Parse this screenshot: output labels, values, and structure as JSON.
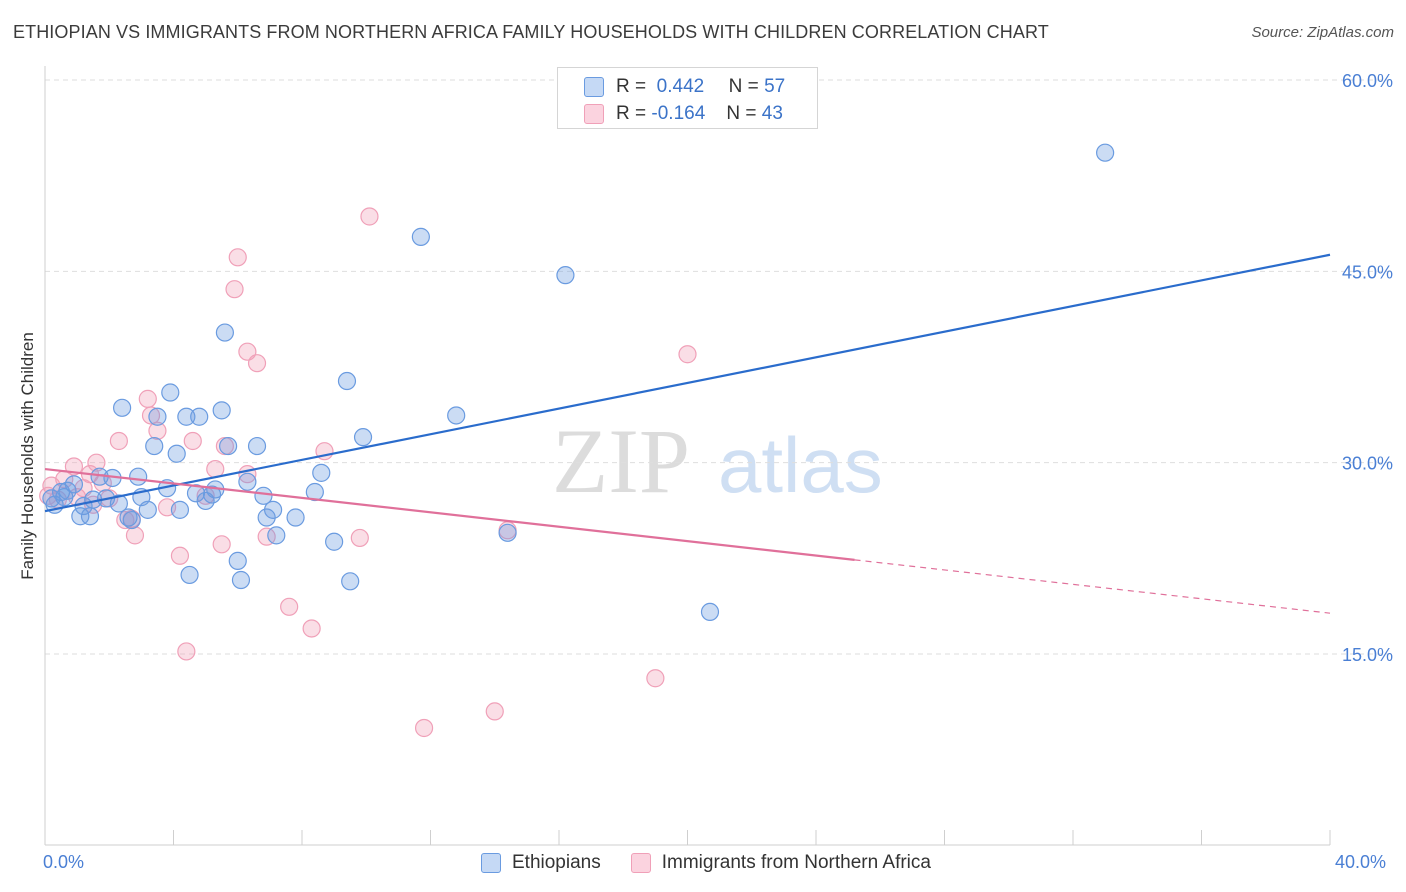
{
  "header": {
    "title": "ETHIOPIAN VS IMMIGRANTS FROM NORTHERN AFRICA FAMILY HOUSEHOLDS WITH CHILDREN CORRELATION CHART",
    "source": "Source: ZipAtlas.com"
  },
  "watermark": {
    "zip": "ZIP",
    "atlas": "atlas"
  },
  "legend": {
    "rows": [
      {
        "r_label": "R =",
        "r_value": "0.442",
        "n_label": "N =",
        "n_value": "57"
      },
      {
        "r_label": "R =",
        "r_value": "-0.164",
        "n_label": "N =",
        "n_value": "43"
      }
    ]
  },
  "chart_data": {
    "type": "scatter",
    "title": "ETHIOPIAN VS IMMIGRANTS FROM NORTHERN AFRICA FAMILY HOUSEHOLDS WITH CHILDREN CORRELATION CHART",
    "xlabel": "",
    "ylabel": "Family Households with Children",
    "xlim": [
      0,
      40
    ],
    "ylim": [
      0,
      61
    ],
    "x_tick_labels": [
      "0.0%",
      "40.0%"
    ],
    "y_ticks": [
      15,
      30,
      45,
      60
    ],
    "y_tick_labels": [
      "15.0%",
      "30.0%",
      "45.0%",
      "60.0%"
    ],
    "grid": true,
    "legend_position": "top-center",
    "colors": {
      "blue": "#6a9be0",
      "blue_line": "#2a6ccc",
      "pink": "#f0a0b8",
      "pink_line": "#e0709a"
    },
    "series": [
      {
        "name": "Ethiopians",
        "R": 0.442,
        "N": 57,
        "trend": {
          "x": [
            0,
            40
          ],
          "y": [
            26.2,
            46.3
          ],
          "dashed_from": null
        },
        "points": [
          [
            0.2,
            27.2
          ],
          [
            0.3,
            26.7
          ],
          [
            0.5,
            27.7
          ],
          [
            0.6,
            27.3
          ],
          [
            0.7,
            27.8
          ],
          [
            0.9,
            28.3
          ],
          [
            1.1,
            25.8
          ],
          [
            1.2,
            26.6
          ],
          [
            1.4,
            25.8
          ],
          [
            1.5,
            27.1
          ],
          [
            1.7,
            28.9
          ],
          [
            1.9,
            27.2
          ],
          [
            2.1,
            28.8
          ],
          [
            2.3,
            26.8
          ],
          [
            2.4,
            34.3
          ],
          [
            2.6,
            25.7
          ],
          [
            2.7,
            25.5
          ],
          [
            2.9,
            28.9
          ],
          [
            3.0,
            27.3
          ],
          [
            3.2,
            26.3
          ],
          [
            3.4,
            31.3
          ],
          [
            3.5,
            33.6
          ],
          [
            3.8,
            28.0
          ],
          [
            3.9,
            35.5
          ],
          [
            4.1,
            30.7
          ],
          [
            4.2,
            26.3
          ],
          [
            4.4,
            33.6
          ],
          [
            4.5,
            21.2
          ],
          [
            4.7,
            27.6
          ],
          [
            4.8,
            33.6
          ],
          [
            5.0,
            27.0
          ],
          [
            5.2,
            27.5
          ],
          [
            5.3,
            27.9
          ],
          [
            5.5,
            34.1
          ],
          [
            5.6,
            40.2
          ],
          [
            5.7,
            31.3
          ],
          [
            6.0,
            22.3
          ],
          [
            6.1,
            20.8
          ],
          [
            6.3,
            28.5
          ],
          [
            6.6,
            31.3
          ],
          [
            6.8,
            27.4
          ],
          [
            6.9,
            25.7
          ],
          [
            7.1,
            26.3
          ],
          [
            7.2,
            24.3
          ],
          [
            7.8,
            25.7
          ],
          [
            8.4,
            27.7
          ],
          [
            8.6,
            29.2
          ],
          [
            9.0,
            23.8
          ],
          [
            9.4,
            36.4
          ],
          [
            9.5,
            20.7
          ],
          [
            9.9,
            32.0
          ],
          [
            11.7,
            47.7
          ],
          [
            12.8,
            33.7
          ],
          [
            14.4,
            24.5
          ],
          [
            16.2,
            44.7
          ],
          [
            20.7,
            18.3
          ],
          [
            33.0,
            54.3
          ]
        ]
      },
      {
        "name": "Immigrants from Northern Africa",
        "R": -0.164,
        "N": 43,
        "trend": {
          "x": [
            0,
            40
          ],
          "y": [
            29.5,
            18.2
          ],
          "dashed_from": 25.2
        },
        "points": [
          [
            0.1,
            27.4
          ],
          [
            0.2,
            28.2
          ],
          [
            0.4,
            27.1
          ],
          [
            0.6,
            28.7
          ],
          [
            0.9,
            29.7
          ],
          [
            1.0,
            27.3
          ],
          [
            1.2,
            28.0
          ],
          [
            1.4,
            29.1
          ],
          [
            1.6,
            30.0
          ],
          [
            1.8,
            28.4
          ],
          [
            2.0,
            27.2
          ],
          [
            2.3,
            31.7
          ],
          [
            2.5,
            25.5
          ],
          [
            2.7,
            25.6
          ],
          [
            2.8,
            24.3
          ],
          [
            3.2,
            35.0
          ],
          [
            3.3,
            33.7
          ],
          [
            3.5,
            32.5
          ],
          [
            3.8,
            26.5
          ],
          [
            4.2,
            22.7
          ],
          [
            4.4,
            15.2
          ],
          [
            4.6,
            31.7
          ],
          [
            5.0,
            27.4
          ],
          [
            5.3,
            29.5
          ],
          [
            5.5,
            23.6
          ],
          [
            5.6,
            31.3
          ],
          [
            5.9,
            43.6
          ],
          [
            6.0,
            46.1
          ],
          [
            6.3,
            38.7
          ],
          [
            6.6,
            37.8
          ],
          [
            6.9,
            24.2
          ],
          [
            7.6,
            18.7
          ],
          [
            8.3,
            17.0
          ],
          [
            8.7,
            30.9
          ],
          [
            9.8,
            24.1
          ],
          [
            10.1,
            49.3
          ],
          [
            11.8,
            9.2
          ],
          [
            14.0,
            10.5
          ],
          [
            14.4,
            24.7
          ],
          [
            20.0,
            38.5
          ],
          [
            19.0,
            13.1
          ],
          [
            6.3,
            29.1
          ],
          [
            1.5,
            26.7
          ]
        ]
      }
    ]
  }
}
